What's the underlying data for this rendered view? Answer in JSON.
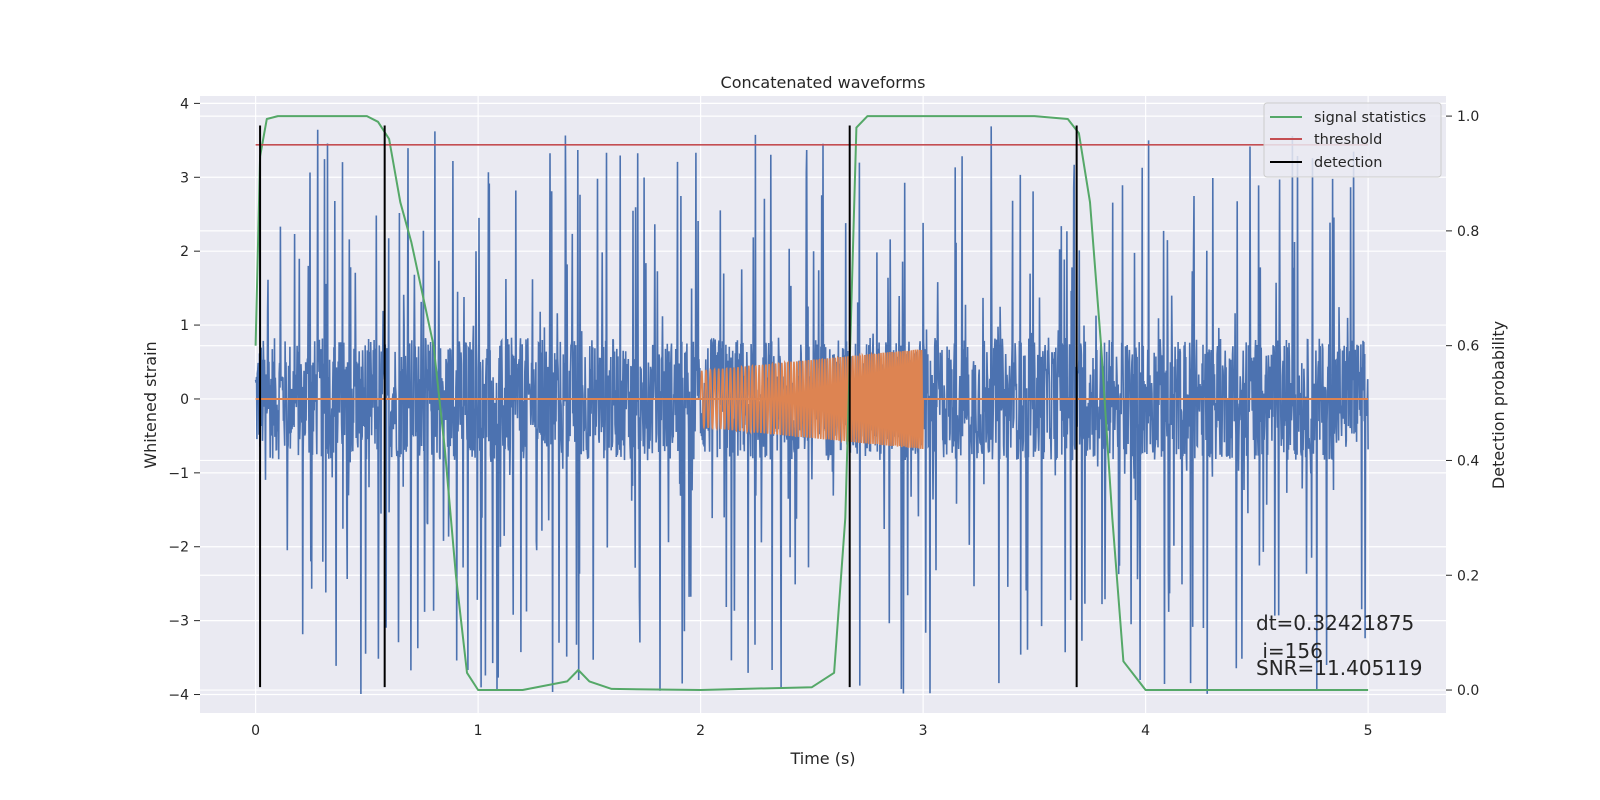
{
  "chart_data": {
    "type": "line",
    "title": "Concatenated waveforms",
    "xlabel": "Time (s)",
    "ylabel": "Whitened strain",
    "y2label": "Detection probability",
    "xlim": [
      -0.25,
      5.35
    ],
    "ylim": [
      -4.25,
      4.1
    ],
    "y2lim": [
      -0.04,
      1.035
    ],
    "x_ticks": [
      0,
      1,
      2,
      3,
      4,
      5
    ],
    "y_ticks": [
      -4,
      -3,
      -2,
      -1,
      0,
      1,
      2,
      3,
      4
    ],
    "y2_ticks": [
      0.0,
      0.2,
      0.4,
      0.6,
      0.8,
      1.0
    ],
    "x_tick_labels": [
      "0",
      "1",
      "2",
      "3",
      "4",
      "5"
    ],
    "y_tick_labels": [
      "−4",
      "−3",
      "−2",
      "−1",
      "0",
      "1",
      "2",
      "3",
      "4"
    ],
    "y2_tick_labels": [
      "0.0",
      "0.2",
      "0.4",
      "0.6",
      "0.8",
      "1.0"
    ],
    "grid": true,
    "legend_position": "top-right",
    "colors": {
      "background": "#eaeaf2",
      "grid": "#ffffff",
      "strain": "#4c72b0",
      "template": "#dd8452",
      "signal_statistics": "#55a868",
      "threshold": "#c44e52",
      "detection": "#000000"
    },
    "series": [
      {
        "name": "",
        "axis": "left",
        "kind": "noise",
        "x_range": [
          0,
          5
        ],
        "amplitude_envelope": 0.83,
        "spike_peak_range": [
          -4.0,
          3.7
        ]
      },
      {
        "name": "",
        "axis": "left",
        "kind": "chirp",
        "x_range": [
          2.0,
          3.0
        ],
        "amplitude_start": 0.38,
        "amplitude_end": 0.68,
        "baseline_range": [
          0,
          5
        ]
      },
      {
        "name": "signal statistics",
        "axis": "right",
        "x": [
          0.0,
          0.02,
          0.05,
          0.1,
          0.3,
          0.5,
          0.55,
          0.6,
          0.65,
          0.7,
          0.8,
          0.85,
          0.9,
          0.95,
          1.0,
          1.2,
          1.4,
          1.45,
          1.5,
          1.6,
          2.0,
          2.5,
          2.6,
          2.65,
          2.7,
          2.75,
          3.0,
          3.5,
          3.65,
          3.7,
          3.75,
          3.8,
          3.85,
          3.9,
          4.0,
          5.0
        ],
        "y": [
          0.6,
          0.93,
          0.995,
          1.0,
          1.0,
          1.0,
          0.99,
          0.96,
          0.85,
          0.78,
          0.6,
          0.42,
          0.2,
          0.03,
          0.0,
          0.0,
          0.015,
          0.035,
          0.015,
          0.002,
          0.0,
          0.005,
          0.03,
          0.3,
          0.98,
          1.0,
          1.0,
          1.0,
          0.995,
          0.97,
          0.85,
          0.6,
          0.3,
          0.05,
          0.0,
          0.0
        ]
      },
      {
        "name": "threshold",
        "axis": "right",
        "x": [
          0,
          5
        ],
        "y": [
          0.95,
          0.95
        ]
      },
      {
        "name": "detection",
        "axis": "left",
        "kind": "vertical-lines",
        "x": [
          0.02,
          0.58,
          2.67,
          3.69
        ],
        "y_range": [
          -3.9,
          3.7
        ]
      }
    ],
    "annotation": {
      "dt": "dt=0.32421875",
      "i": " i=156",
      "snr": "SNR=11.405119"
    }
  }
}
